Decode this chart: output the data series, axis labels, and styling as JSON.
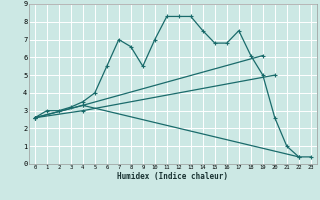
{
  "xlabel": "Humidex (Indice chaleur)",
  "bg_color": "#cce8e4",
  "line_color": "#1a6b6b",
  "grid_color": "#ffffff",
  "xlim": [
    -0.5,
    23.5
  ],
  "ylim": [
    0,
    9
  ],
  "lines": [
    {
      "x": [
        0,
        1,
        2,
        3,
        4,
        5,
        6,
        7,
        8,
        9,
        10,
        11,
        12,
        13,
        14,
        15,
        16,
        17,
        18,
        19,
        20,
        21,
        22,
        23
      ],
      "y": [
        2.6,
        3.0,
        3.0,
        3.2,
        3.5,
        4.0,
        5.5,
        7.0,
        6.6,
        5.5,
        7.0,
        8.3,
        8.3,
        8.3,
        7.5,
        6.8,
        6.8,
        7.5,
        6.1,
        5.0,
        2.6,
        1.0,
        0.4,
        0.4
      ]
    },
    {
      "x": [
        0,
        4,
        19
      ],
      "y": [
        2.6,
        3.3,
        6.1
      ]
    },
    {
      "x": [
        0,
        4,
        20
      ],
      "y": [
        2.6,
        3.0,
        5.0
      ]
    },
    {
      "x": [
        0,
        4,
        22
      ],
      "y": [
        2.6,
        3.3,
        0.4
      ]
    }
  ],
  "xticks": [
    0,
    1,
    2,
    3,
    4,
    5,
    6,
    7,
    8,
    9,
    10,
    11,
    12,
    13,
    14,
    15,
    16,
    17,
    18,
    19,
    20,
    21,
    22,
    23
  ],
  "yticks": [
    0,
    1,
    2,
    3,
    4,
    5,
    6,
    7,
    8,
    9
  ]
}
